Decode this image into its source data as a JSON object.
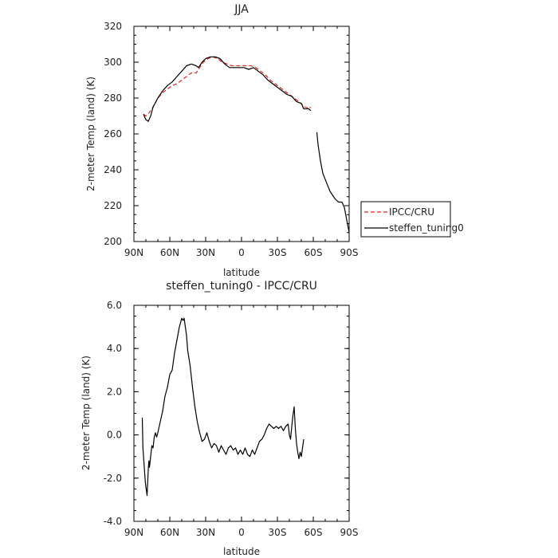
{
  "chart_data": [
    {
      "type": "line",
      "title": "JJA",
      "xlabel": "latitude",
      "ylabel": "2-meter Temp (land) (K)",
      "xlim": [
        90,
        -90
      ],
      "ylim": [
        200,
        320
      ],
      "x_ticks": [
        90,
        60,
        30,
        0,
        -30,
        -60,
        -90
      ],
      "x_tick_labels": [
        "90N",
        "60N",
        "30N",
        "0",
        "30S",
        "60S",
        "90S"
      ],
      "y_ticks": [
        200,
        220,
        240,
        260,
        280,
        300,
        320
      ],
      "y_tick_labels": [
        "200",
        "220",
        "240",
        "260",
        "280",
        "300",
        "320"
      ],
      "grid": false,
      "legend_position": "outside-right",
      "series": [
        {
          "name": "IPCC/CRU",
          "color": "#e8251f",
          "dash": "dashed",
          "segments": [
            [
              [
                82,
                271
              ],
              [
                80,
                270
              ],
              [
                77,
                272
              ],
              [
                74,
                275
              ],
              [
                70,
                280
              ],
              [
                66,
                283
              ],
              [
                62,
                285
              ],
              [
                58,
                287
              ],
              [
                54,
                288
              ],
              [
                50,
                290
              ],
              [
                46,
                292
              ],
              [
                42,
                294
              ],
              [
                38,
                294
              ],
              [
                35,
                297
              ],
              [
                32,
                300
              ],
              [
                28,
                302
              ],
              [
                24,
                303
              ],
              [
                20,
                302
              ],
              [
                16,
                300
              ],
              [
                12,
                299
              ],
              [
                8,
                298
              ],
              [
                4,
                298
              ],
              [
                0,
                298
              ],
              [
                -4,
                298
              ],
              [
                -8,
                298
              ],
              [
                -12,
                297
              ],
              [
                -16,
                295
              ],
              [
                -20,
                293
              ],
              [
                -24,
                290
              ],
              [
                -28,
                288
              ],
              [
                -32,
                286
              ],
              [
                -36,
                284
              ],
              [
                -40,
                282
              ],
              [
                -44,
                280
              ],
              [
                -48,
                278
              ],
              [
                -50,
                277
              ],
              [
                -52,
                275
              ],
              [
                -54,
                275
              ],
              [
                -56,
                274
              ],
              [
                -58,
                275
              ]
            ]
          ]
        },
        {
          "name": "steffen_tuning0",
          "color": "#000000",
          "dash": "solid",
          "segments": [
            [
              [
                82,
                271
              ],
              [
                80,
                268
              ],
              [
                78,
                267
              ],
              [
                76,
                270
              ],
              [
                74,
                275
              ],
              [
                70,
                280
              ],
              [
                66,
                284
              ],
              [
                62,
                287
              ],
              [
                58,
                289
              ],
              [
                54,
                292
              ],
              [
                50,
                295
              ],
              [
                46,
                298
              ],
              [
                42,
                299
              ],
              [
                38,
                298
              ],
              [
                36,
                297
              ],
              [
                33,
                300
              ],
              [
                30,
                302
              ],
              [
                26,
                303
              ],
              [
                22,
                303
              ],
              [
                18,
                302
              ],
              [
                14,
                299
              ],
              [
                10,
                297
              ],
              [
                6,
                297
              ],
              [
                2,
                297
              ],
              [
                -2,
                297
              ],
              [
                -6,
                296
              ],
              [
                -10,
                297
              ],
              [
                -14,
                295
              ],
              [
                -18,
                293
              ],
              [
                -22,
                290
              ],
              [
                -26,
                288
              ],
              [
                -30,
                286
              ],
              [
                -34,
                284
              ],
              [
                -38,
                282
              ],
              [
                -42,
                281
              ],
              [
                -46,
                278
              ],
              [
                -50,
                277
              ],
              [
                -52,
                274
              ],
              [
                -54,
                274
              ],
              [
                -56,
                274
              ],
              [
                -58,
                273
              ]
            ],
            [
              [
                -63,
                261
              ],
              [
                -64,
                254
              ],
              [
                -66,
                245
              ],
              [
                -68,
                238
              ],
              [
                -71,
                233
              ],
              [
                -74,
                228
              ],
              [
                -78,
                224
              ],
              [
                -81,
                222
              ],
              [
                -84,
                222
              ],
              [
                -86,
                219
              ],
              [
                -88,
                212
              ],
              [
                -90,
                205
              ]
            ]
          ]
        }
      ]
    },
    {
      "type": "line",
      "title": "steffen_tuning0 - IPCC/CRU",
      "xlabel": "latitude",
      "ylabel": "2-meter Temp (land) (K)",
      "xlim": [
        90,
        -90
      ],
      "ylim": [
        -4,
        6
      ],
      "x_ticks": [
        90,
        60,
        30,
        0,
        -30,
        -60,
        -90
      ],
      "x_tick_labels": [
        "90N",
        "60N",
        "30N",
        "0",
        "30S",
        "60S",
        "90S"
      ],
      "y_ticks": [
        -4,
        -2,
        0,
        2,
        4,
        6
      ],
      "y_tick_labels": [
        "-4.0",
        "-2.0",
        "0.0",
        "2.0",
        "4.0",
        "6.0"
      ],
      "grid": false,
      "series": [
        {
          "color": "#000000",
          "dash": "solid",
          "segments": [
            [
              [
                83,
                0.8
              ],
              [
                82.5,
                -0.6
              ],
              [
                81.5,
                -1.4
              ],
              [
                80.5,
                -2.2
              ],
              [
                79,
                -2.8
              ],
              [
                78,
                -1.6
              ],
              [
                77.5,
                -1.2
              ],
              [
                77,
                -1.5
              ],
              [
                76,
                -1.0
              ],
              [
                75,
                -0.5
              ],
              [
                74,
                -0.6
              ],
              [
                73,
                -0.1
              ],
              [
                72,
                0.1
              ],
              [
                71,
                -0.1
              ],
              [
                70,
                0.1
              ],
              [
                68,
                0.6
              ],
              [
                66,
                1.1
              ],
              [
                64,
                1.8
              ],
              [
                62,
                2.2
              ],
              [
                60,
                2.8
              ],
              [
                58,
                3.0
              ],
              [
                56,
                3.8
              ],
              [
                54,
                4.4
              ],
              [
                52,
                5.0
              ],
              [
                50,
                5.4
              ],
              [
                49,
                5.3
              ],
              [
                48,
                5.4
              ],
              [
                47,
                5.0
              ],
              [
                46,
                4.6
              ],
              [
                45,
                3.9
              ],
              [
                43,
                3.2
              ],
              [
                41,
                2.2
              ],
              [
                39,
                1.3
              ],
              [
                37,
                0.6
              ],
              [
                35,
                0.1
              ],
              [
                33,
                -0.3
              ],
              [
                31,
                -0.2
              ],
              [
                29,
                0.1
              ],
              [
                27,
                -0.3
              ],
              [
                25,
                -0.6
              ],
              [
                23,
                -0.4
              ],
              [
                21,
                -0.5
              ],
              [
                19,
                -0.8
              ],
              [
                17,
                -0.5
              ],
              [
                15,
                -0.7
              ],
              [
                13,
                -0.9
              ],
              [
                11,
                -0.6
              ],
              [
                9,
                -0.5
              ],
              [
                7,
                -0.7
              ],
              [
                5,
                -0.6
              ],
              [
                3,
                -0.9
              ],
              [
                1,
                -0.7
              ],
              [
                -1,
                -0.9
              ],
              [
                -3,
                -0.6
              ],
              [
                -5,
                -0.9
              ],
              [
                -7,
                -1.0
              ],
              [
                -9,
                -0.7
              ],
              [
                -11,
                -0.9
              ],
              [
                -13,
                -0.6
              ],
              [
                -15,
                -0.3
              ],
              [
                -17,
                -0.2
              ],
              [
                -19,
                0.0
              ],
              [
                -21,
                0.3
              ],
              [
                -23,
                0.5
              ],
              [
                -25,
                0.4
              ],
              [
                -27,
                0.3
              ],
              [
                -29,
                0.4
              ],
              [
                -31,
                0.3
              ],
              [
                -33,
                0.4
              ],
              [
                -35,
                0.2
              ],
              [
                -37,
                0.4
              ],
              [
                -39,
                0.5
              ],
              [
                -40,
                0.0
              ],
              [
                -41,
                -0.2
              ],
              [
                -42,
                0.4
              ],
              [
                -43,
                0.9
              ],
              [
                -44,
                1.3
              ],
              [
                -45,
                0.3
              ],
              [
                -46,
                -0.4
              ],
              [
                -47,
                -0.8
              ],
              [
                -48,
                -1.1
              ],
              [
                -49,
                -0.8
              ],
              [
                -50,
                -1.0
              ],
              [
                -51,
                -0.6
              ],
              [
                -52,
                -0.2
              ]
            ]
          ]
        }
      ]
    }
  ]
}
